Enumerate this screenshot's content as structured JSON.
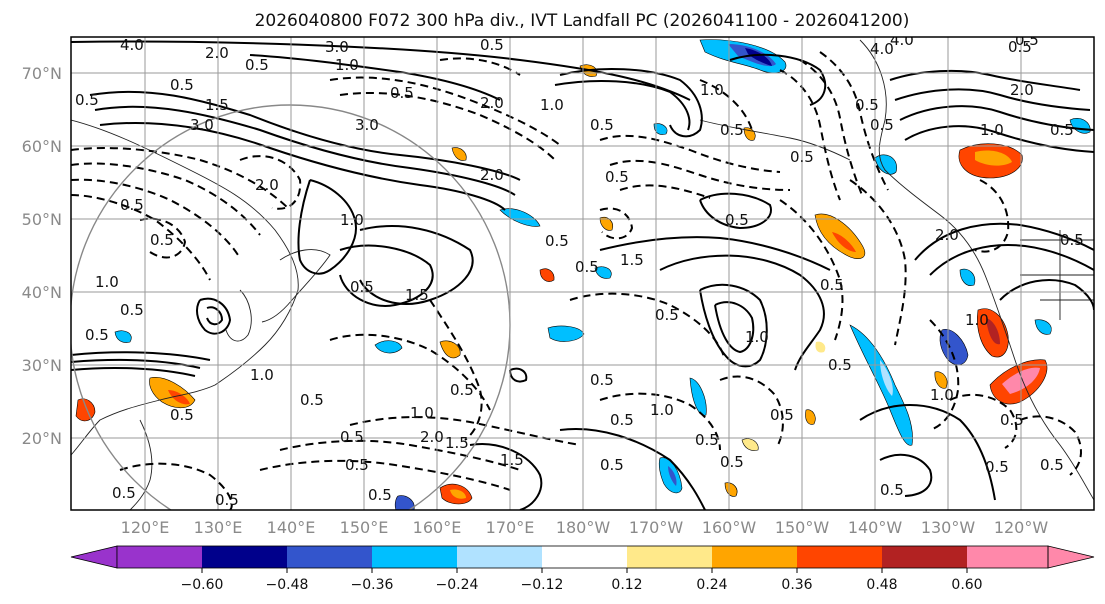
{
  "title": "2026040800 F072 300 hPa div., IVT Landfall PC (2026041100 - 2026041200)",
  "lat_labels": [
    "70°N",
    "60°N",
    "50°N",
    "40°N",
    "30°N",
    "20°N"
  ],
  "lon_labels": [
    "120°E",
    "130°E",
    "140°E",
    "150°E",
    "160°E",
    "170°E",
    "180°W",
    "170°W",
    "160°W",
    "150°W",
    "140°W",
    "130°W",
    "120°W"
  ],
  "colorbar": {
    "colors": [
      "#9933cc",
      "#00008b",
      "#3355cc",
      "#00bfff",
      "#b0e2ff",
      "#ffffff",
      "#ffe98a",
      "#ffa500",
      "#ff4500",
      "#b22222",
      "#ff88aa"
    ],
    "tick_labels": [
      "−0.60",
      "−0.48",
      "−0.36",
      "−0.24",
      "−0.12",
      "0.12",
      "0.24",
      "0.36",
      "0.48",
      "0.60"
    ]
  },
  "contour_labels": [
    "3.0",
    "0.5",
    "0.5",
    "4.0",
    "2.0",
    "4.0",
    "3.0",
    "0.5",
    "0.5",
    "1.5",
    "2.0",
    "3.0",
    "0.5",
    "1.0",
    "1.0",
    "0.5",
    "0.5",
    "0.5",
    "1.0",
    "0.5",
    "0.5",
    "1.0",
    "0.5",
    "1.5",
    "0.5",
    "1.5",
    "0.5",
    "0.5",
    "0.5",
    "1.0",
    "0.5",
    "0.5",
    "1.5",
    "2.0",
    "0.5",
    "0.5",
    "0.5",
    "0.5",
    "0.5",
    "0.5",
    "1.0",
    "0.5",
    "1.0",
    "0.5",
    "0.5",
    "1.0",
    "0.5",
    "0.5",
    "0.5",
    "0.5",
    "0.5",
    "2.0",
    "0.5",
    "4.0",
    "0.5",
    "0.5",
    "0.5",
    "1.0",
    "2.0",
    "1.0",
    "0.5",
    "0.5",
    "0.5",
    "1.0",
    "1.5",
    "0.5",
    "1.0",
    "0.5",
    "2.0",
    "0.5",
    "0.5",
    "0.5",
    "0.5",
    "2.0"
  ]
}
